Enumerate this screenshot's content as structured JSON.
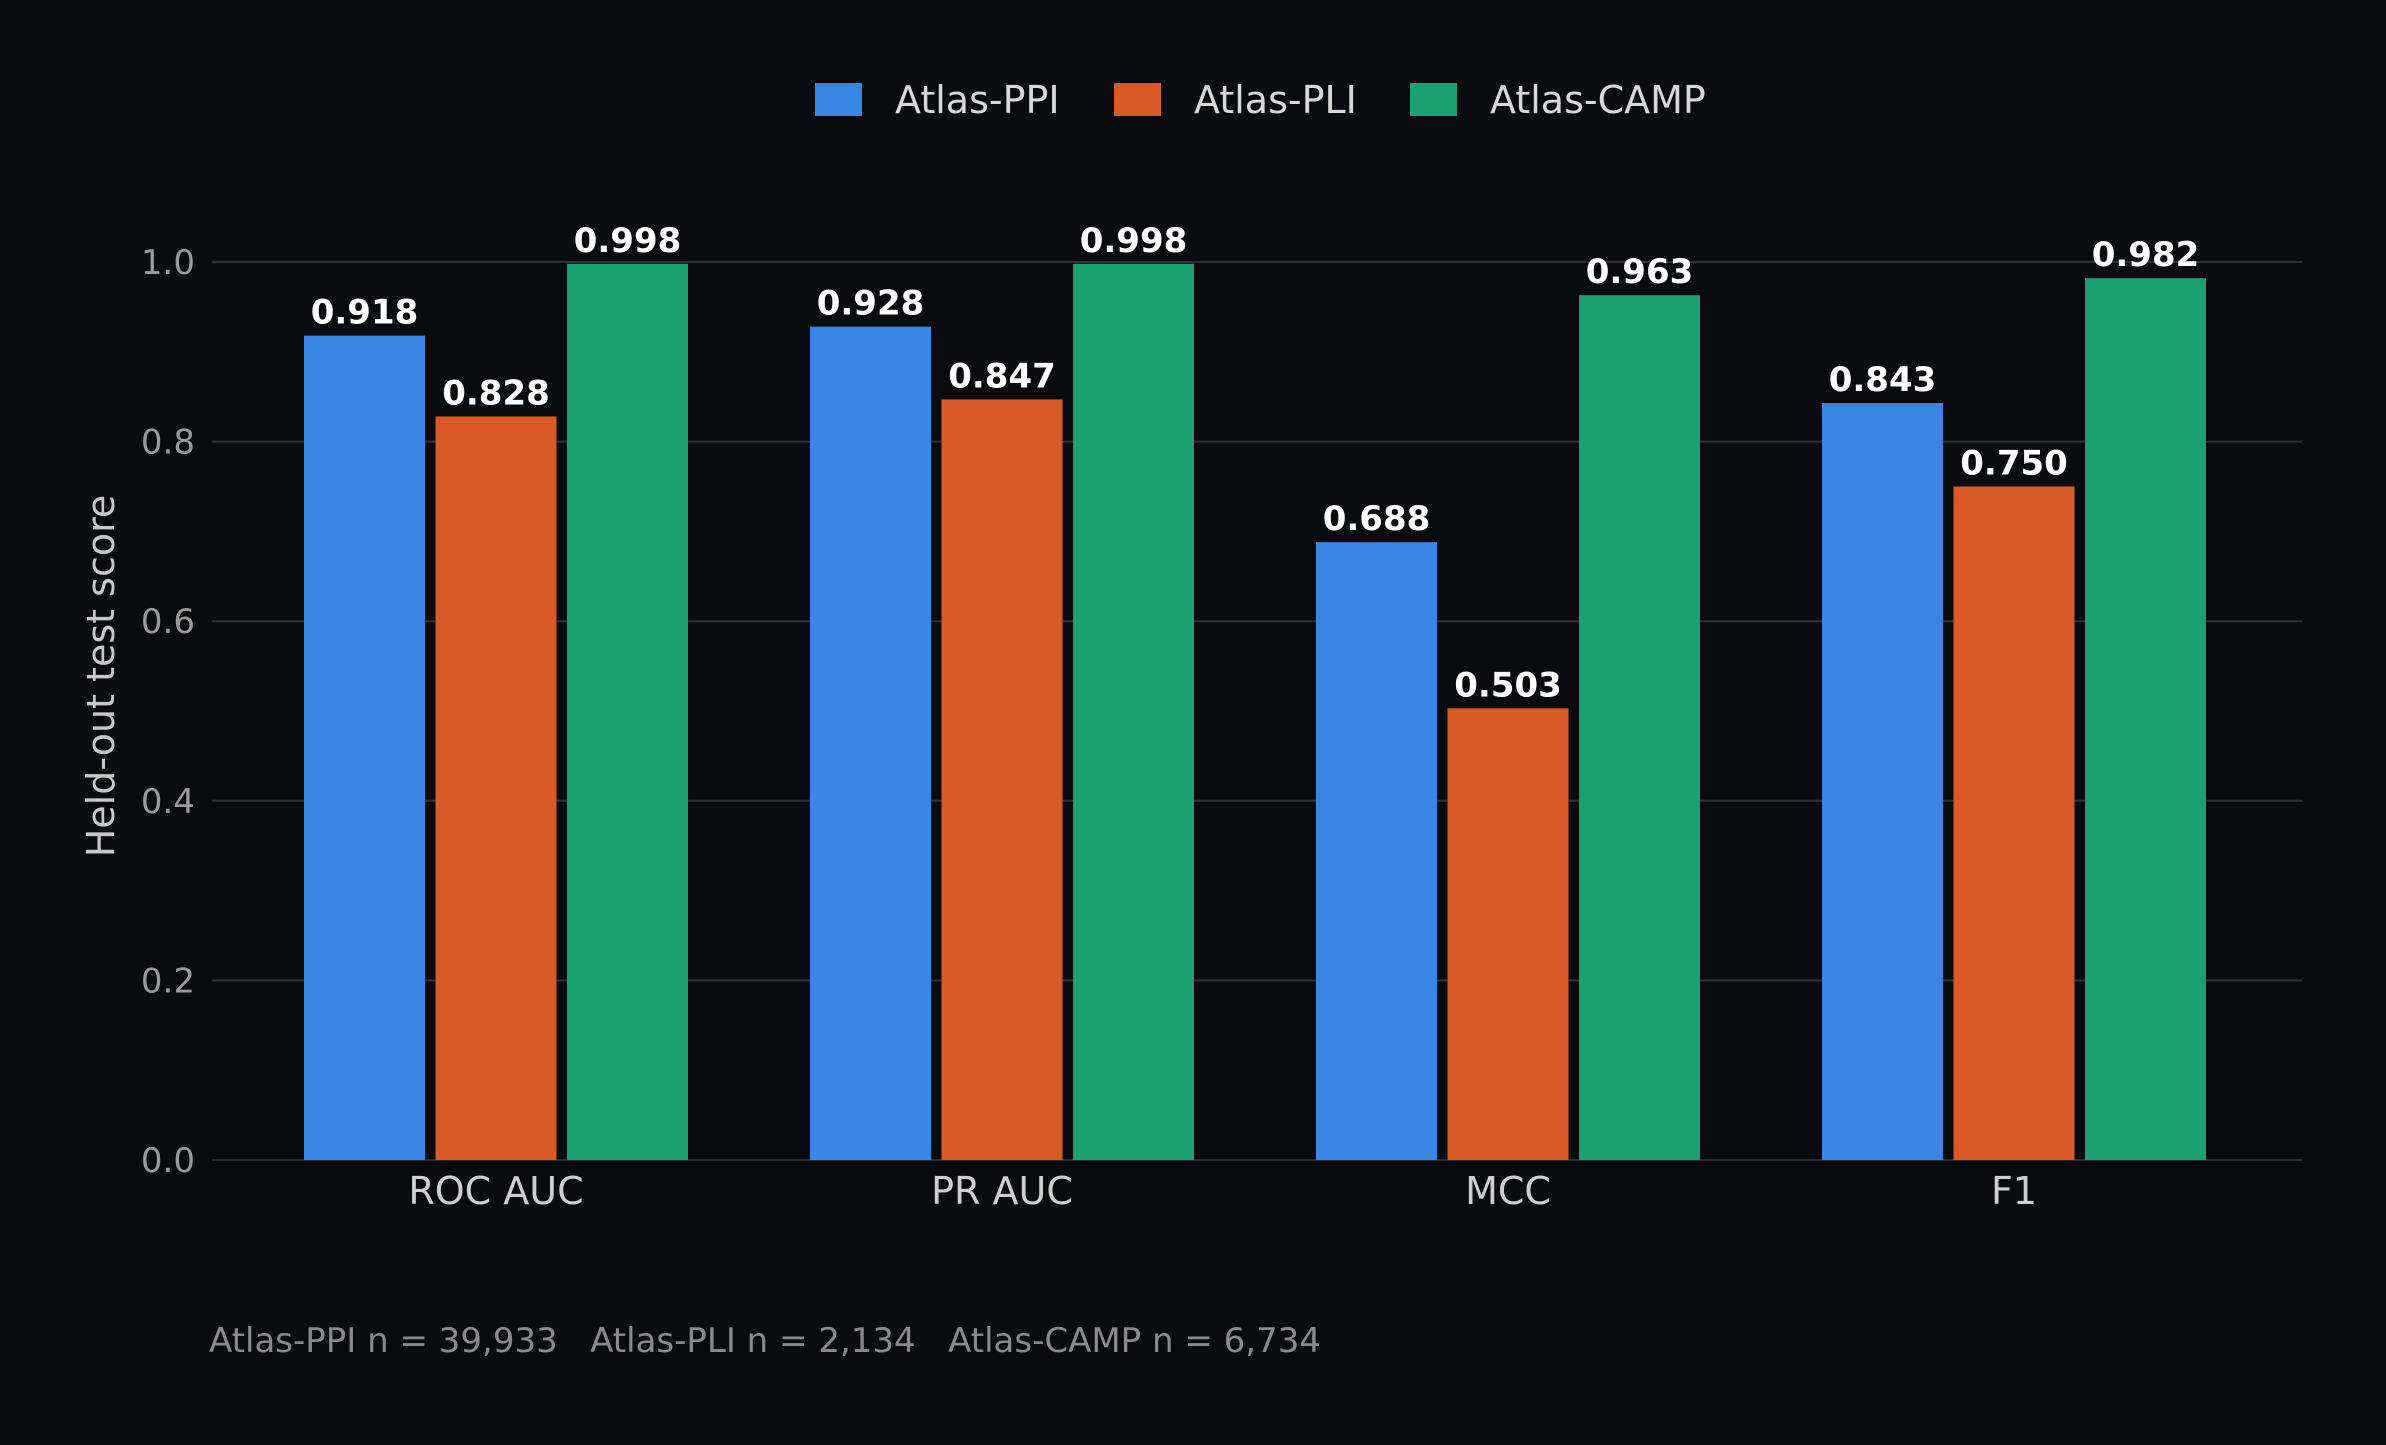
{
  "chart_data": {
    "type": "bar",
    "categories": [
      "ROC AUC",
      "PR AUC",
      "MCC",
      "F1"
    ],
    "series": [
      {
        "name": "Atlas-PPI",
        "color": "#3a86e5",
        "values": [
          0.918,
          0.928,
          0.688,
          0.843
        ],
        "labels": [
          "0.918",
          "0.928",
          "0.688",
          "0.843"
        ]
      },
      {
        "name": "Atlas-PLI",
        "color": "#d95a27",
        "values": [
          0.828,
          0.847,
          0.503,
          0.75
        ],
        "labels": [
          "0.828",
          "0.847",
          "0.503",
          "0.750"
        ]
      },
      {
        "name": "Atlas-CAMP",
        "color": "#1aa071",
        "values": [
          0.998,
          0.998,
          0.963,
          0.982
        ],
        "labels": [
          "0.998",
          "0.998",
          "0.963",
          "0.982"
        ]
      }
    ],
    "ylabel": "Held-out test score",
    "ylim": [
      0,
      1.0
    ],
    "yticks": [
      "0.0",
      "0.2",
      "0.4",
      "0.6",
      "0.8",
      "1.0"
    ],
    "grid": true,
    "legend_position": "top-center",
    "footnote": "Atlas-PPI n = 39,933   Atlas-PLI n = 2,134   Atlas-CAMP n = 6,734"
  }
}
